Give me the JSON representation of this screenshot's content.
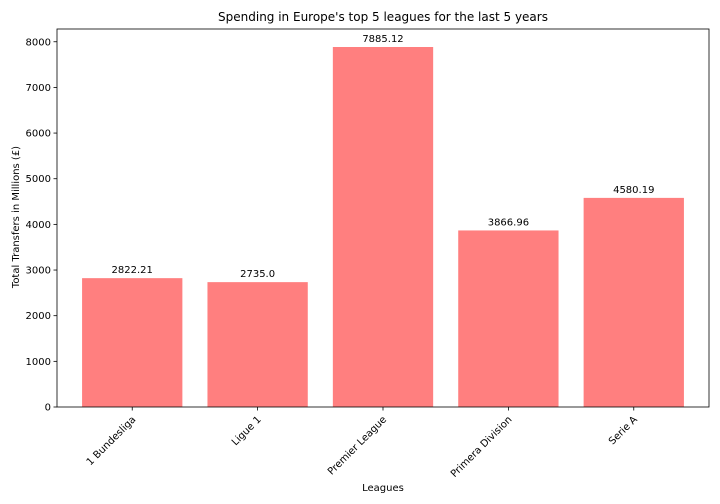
{
  "chart_data": {
    "type": "bar",
    "title": "Spending in Europe's top 5 leagues for the last 5 years",
    "xlabel": "Leagues",
    "ylabel": "Total Transfers in Millions (£)",
    "categories": [
      "1 Bundesliga",
      "Ligue 1",
      "Premier League",
      "Primera Division",
      "Serie A"
    ],
    "values": [
      2822.21,
      2735.0,
      7885.12,
      3866.96,
      4580.19
    ],
    "value_labels": [
      "2822.21",
      "2735.0",
      "7885.12",
      "3866.96",
      "4580.19"
    ],
    "ylim": [
      0,
      8279.4
    ],
    "yticks": [
      0,
      1000,
      2000,
      3000,
      4000,
      5000,
      6000,
      7000,
      8000
    ],
    "grid": false,
    "bar_color": "#ff7f7f"
  }
}
